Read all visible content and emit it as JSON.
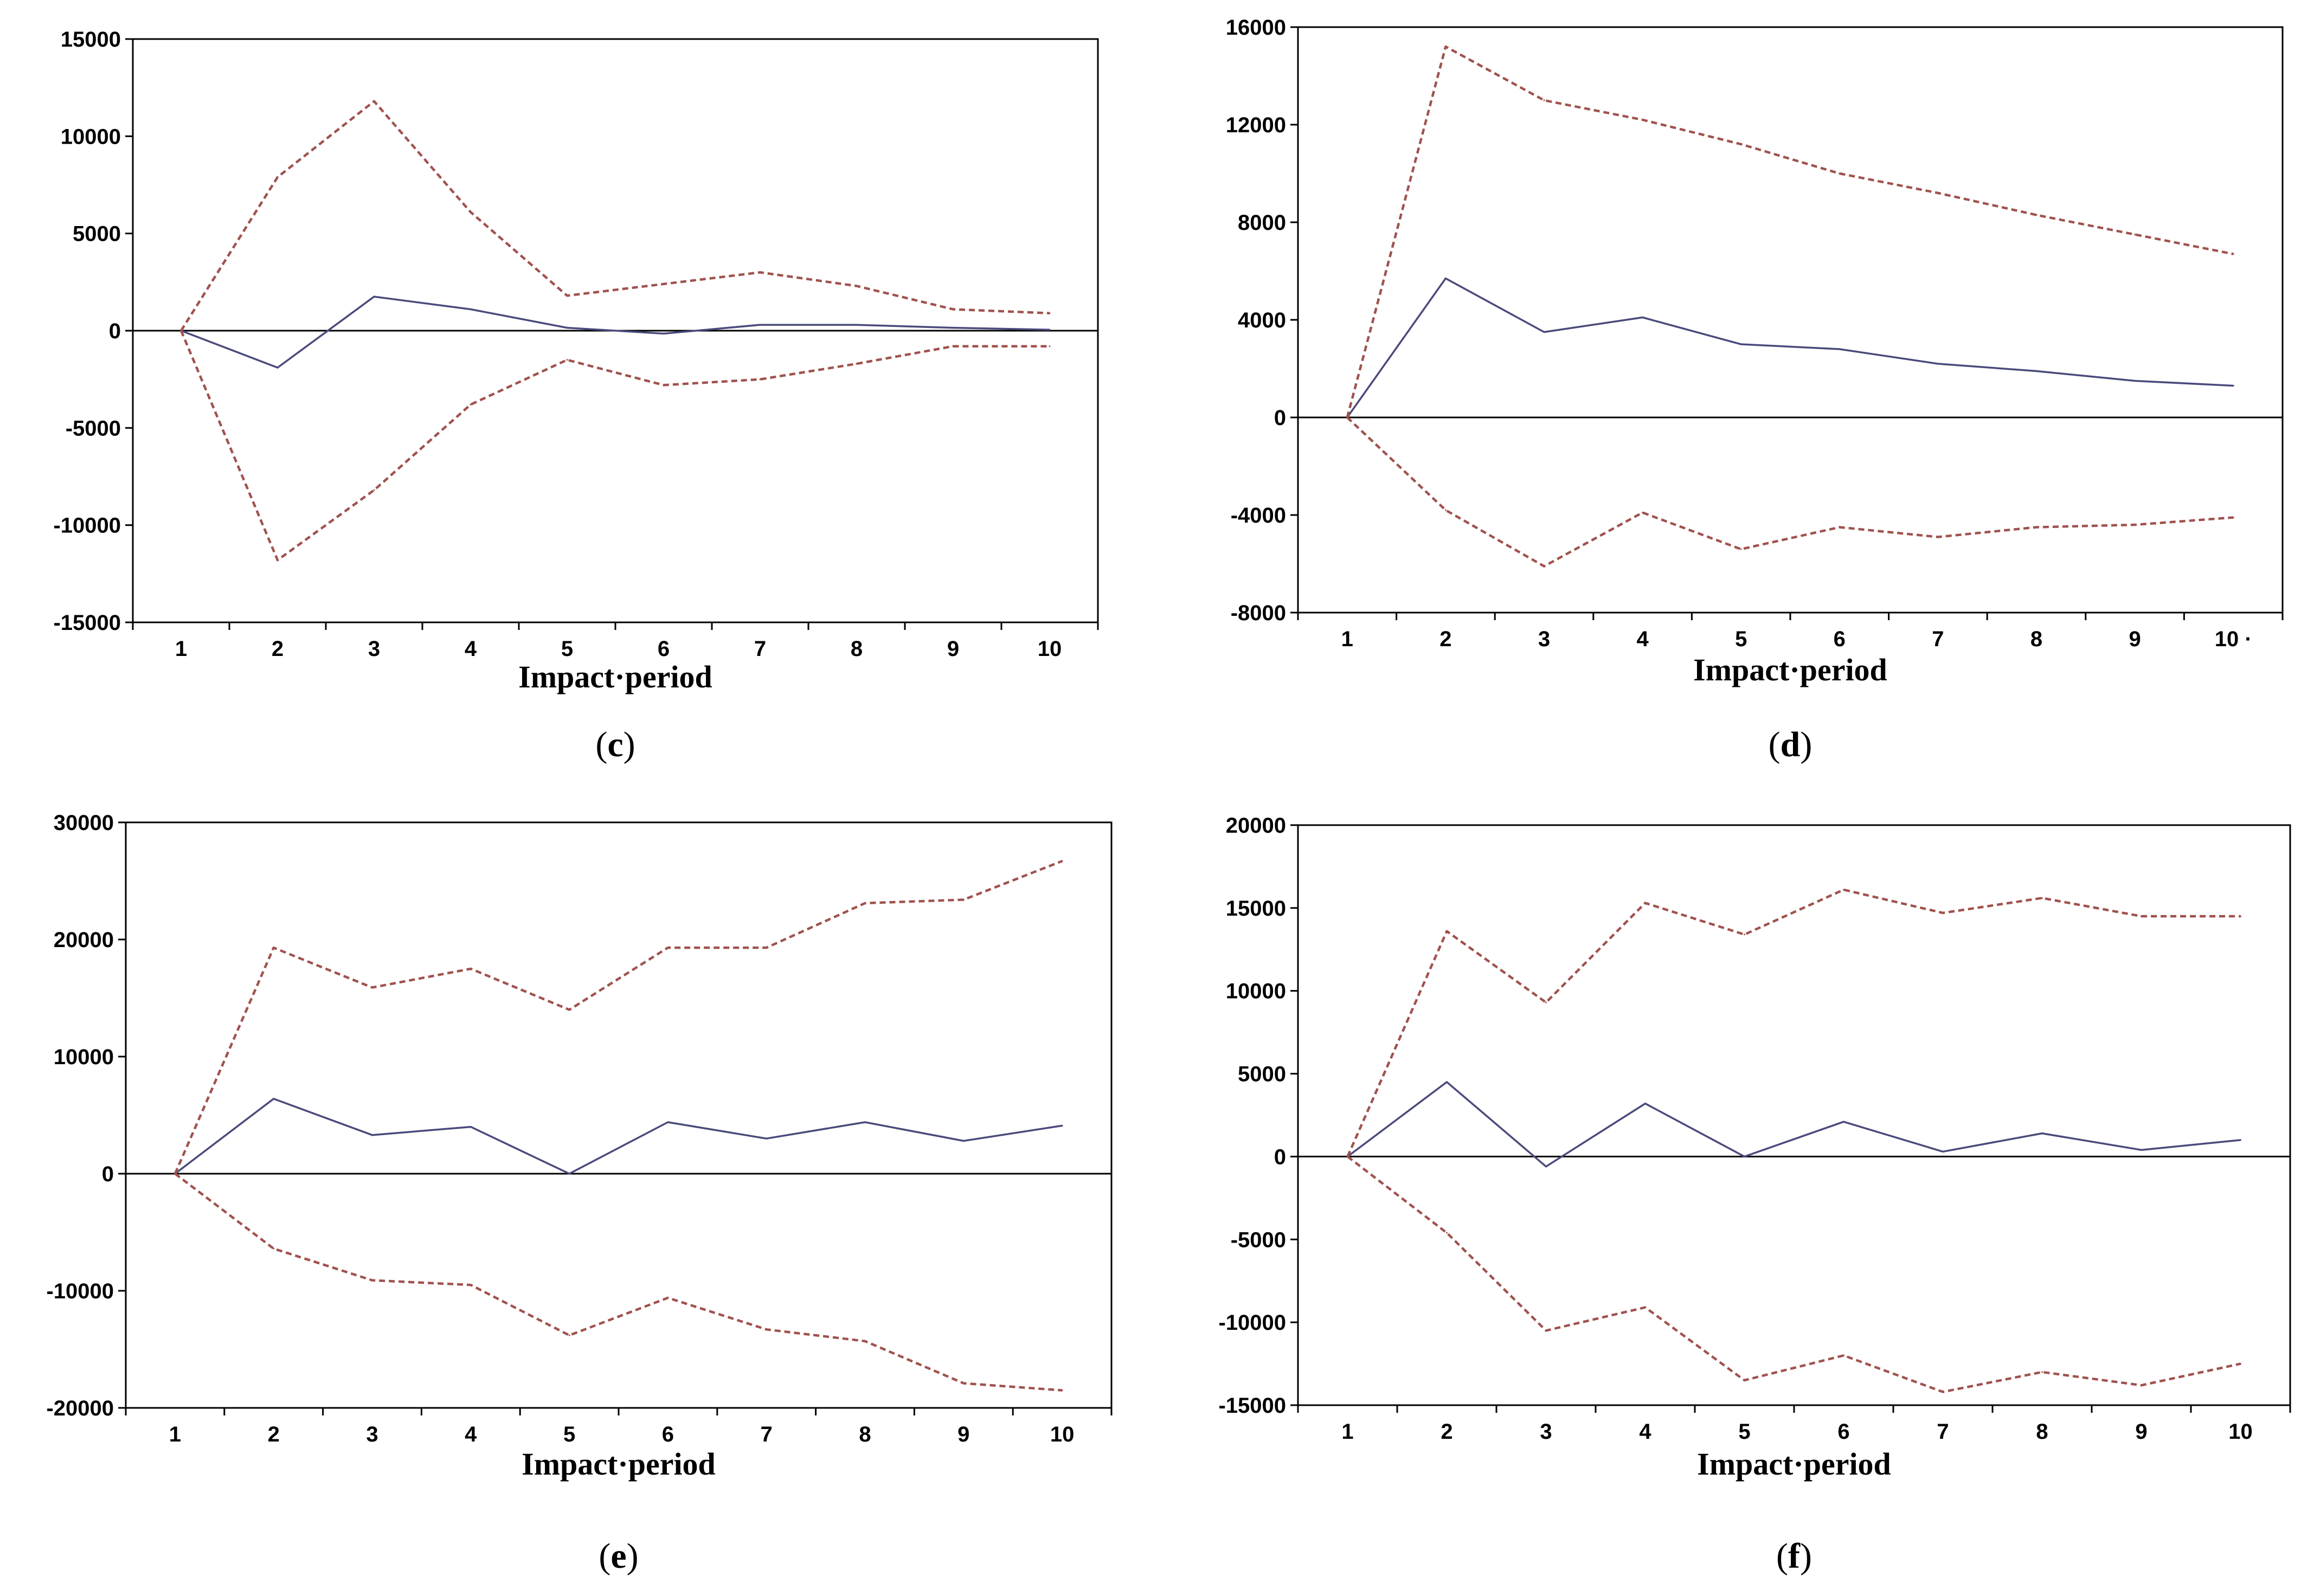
{
  "chart_data": [
    {
      "type": "line",
      "panel_label": "c",
      "xlabel": "Impact·period",
      "ylabel": "",
      "categories": [
        "1",
        "2",
        "3",
        "4",
        "5",
        "6",
        "7",
        "8",
        "9",
        "10"
      ],
      "ylim": [
        -15000,
        15000
      ],
      "yticks": [
        -15000,
        -10000,
        -5000,
        0,
        5000,
        10000,
        15000
      ],
      "yticklabels": [
        "-15000",
        "-10000",
        "-5000",
        "0",
        "5000",
        "10000",
        "15000"
      ],
      "series": [
        {
          "name": "response",
          "style": "solid",
          "color": "#4a4a7c",
          "values": [
            0,
            -1900,
            1750,
            1100,
            150,
            -150,
            300,
            300,
            150,
            50
          ]
        },
        {
          "name": "upper band",
          "style": "dashed",
          "color": "#a0524e",
          "values": [
            0,
            7900,
            11800,
            6100,
            1800,
            2400,
            3000,
            2300,
            1100,
            900
          ]
        },
        {
          "name": "lower band",
          "style": "dashed",
          "color": "#a0524e",
          "values": [
            0,
            -11800,
            -8200,
            -3800,
            -1500,
            -2800,
            -2500,
            -1700,
            -800,
            -800
          ]
        }
      ]
    },
    {
      "type": "line",
      "panel_label": "d",
      "xlabel": "Impact·period",
      "ylabel": "",
      "categories": [
        "1",
        "2",
        "3",
        "4",
        "5",
        "6",
        "7",
        "8",
        "9",
        "10"
      ],
      "x_last_suffix": " ·",
      "ylim": [
        -8000,
        16000
      ],
      "yticks": [
        -8000,
        -4000,
        0,
        4000,
        8000,
        12000,
        16000
      ],
      "yticklabels": [
        "-8000",
        "-4000",
        "0",
        "4000",
        "8000",
        "12000",
        "16000"
      ],
      "series": [
        {
          "name": "response",
          "style": "solid",
          "color": "#4a4a7c",
          "values": [
            0,
            5700,
            3500,
            4100,
            3000,
            2800,
            2200,
            1900,
            1500,
            1300
          ]
        },
        {
          "name": "upper band",
          "style": "dashed",
          "color": "#a0524e",
          "values": [
            0,
            15200,
            13000,
            12200,
            11200,
            10000,
            9200,
            8300,
            7500,
            6700
          ]
        },
        {
          "name": "lower band",
          "style": "dashed",
          "color": "#a0524e",
          "values": [
            0,
            -3800,
            -6100,
            -3900,
            -5400,
            -4500,
            -4900,
            -4500,
            -4400,
            -4100
          ]
        }
      ]
    },
    {
      "type": "line",
      "panel_label": "e",
      "xlabel": "Impact·period",
      "ylabel": "",
      "categories": [
        "1",
        "2",
        "3",
        "4",
        "5",
        "6",
        "7",
        "8",
        "9",
        "10"
      ],
      "ylim": [
        -20000,
        30000
      ],
      "yticks": [
        -20000,
        -10000,
        0,
        10000,
        20000,
        30000
      ],
      "yticklabels": [
        "-20000",
        "-10000",
        "0",
        "10000",
        "20000",
        "30000"
      ],
      "series": [
        {
          "name": "response",
          "style": "solid",
          "color": "#4a4a7c",
          "values": [
            0,
            6400,
            3300,
            4000,
            0,
            4400,
            3000,
            4400,
            2800,
            4100
          ]
        },
        {
          "name": "upper band",
          "style": "dashed",
          "color": "#a0524e",
          "values": [
            0,
            19300,
            15900,
            17500,
            14000,
            19300,
            19300,
            23100,
            23400,
            26700
          ]
        },
        {
          "name": "lower band",
          "style": "dashed",
          "color": "#a0524e",
          "values": [
            0,
            -6400,
            -9100,
            -9500,
            -13800,
            -10600,
            -13300,
            -14300,
            -17900,
            -18500
          ]
        }
      ]
    },
    {
      "type": "line",
      "panel_label": "f",
      "xlabel": "Impact·period",
      "ylabel": "",
      "categories": [
        "1",
        "2",
        "3",
        "4",
        "5",
        "6",
        "7",
        "8",
        "9",
        "10"
      ],
      "ylim": [
        -15000,
        20000
      ],
      "yticks": [
        -15000,
        -10000,
        -5000,
        0,
        5000,
        10000,
        15000,
        20000
      ],
      "yticklabels": [
        "-15000",
        "-10000",
        "-5000",
        "0",
        "5000",
        "10000",
        "15000",
        "20000"
      ],
      "series": [
        {
          "name": "response",
          "style": "solid",
          "color": "#4a4a7c",
          "values": [
            0,
            4500,
            -600,
            3200,
            0,
            2100,
            300,
            1400,
            400,
            1000
          ]
        },
        {
          "name": "upper band",
          "style": "dashed",
          "color": "#a0524e",
          "values": [
            0,
            13600,
            9300,
            15300,
            13400,
            16100,
            14700,
            15600,
            14500,
            14500
          ]
        },
        {
          "name": "lower band",
          "style": "dashed",
          "color": "#a0524e",
          "values": [
            0,
            -4600,
            -10500,
            -9100,
            -13500,
            -12000,
            -14200,
            -13000,
            -13800,
            -12500
          ]
        }
      ]
    }
  ]
}
